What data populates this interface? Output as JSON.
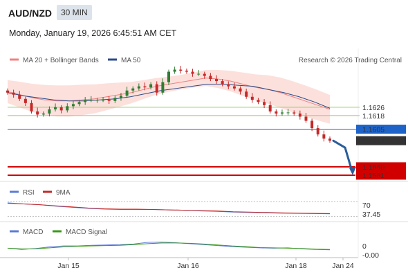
{
  "header": {
    "symbol": "AUD/NZD",
    "timeframe": "30 MIN",
    "datetime": "Monday, January 19, 2026 6:45:51 AM CET"
  },
  "copyright": "Research © 2026 Trading Central",
  "colors": {
    "ma20": "#f08080",
    "ma50": "#2a4a8a",
    "bollinger_fill": "#fbd5d0",
    "candle_up": "#2e7d32",
    "candle_down": "#c62828",
    "support_line": "#d00000",
    "resistance_line": "#9ccc65",
    "pivot_line": "#1e63c8",
    "arrow": "#2a5d9a",
    "rsi": "#5b7bd5",
    "rsi_ma": "#c62828",
    "macd": "#5b7bd5",
    "macd_signal": "#3a9a1a"
  },
  "chart_data": [
    {
      "type": "candlestick",
      "title": "AUD/NZD",
      "legend": [
        "MA 20 + Bollinger Bands",
        "MA 50"
      ],
      "legend_placement": "top-left",
      "x_tick_labels": [
        "Jan 15",
        "Jan 16",
        "Jan 18",
        "Jan 24"
      ],
      "ylim": [
        1.1555,
        1.1665
      ],
      "levels": [
        {
          "label": "1.1626",
          "value": 1.1626,
          "kind": "resistance"
        },
        {
          "label": "1.1618",
          "value": 1.1618,
          "kind": "resistance"
        },
        {
          "label": "1.1605",
          "value": 1.1605,
          "kind": "pivot"
        },
        {
          "label": "1.1594",
          "value": 1.1594,
          "kind": "last"
        },
        {
          "label": "1.1569",
          "value": 1.1569,
          "kind": "support"
        },
        {
          "label": "1.1561",
          "value": 1.1561,
          "kind": "support"
        }
      ],
      "close": [
        1.164,
        1.1638,
        1.1634,
        1.163,
        1.1622,
        1.1619,
        1.162,
        1.1624,
        1.1626,
        1.1623,
        1.1627,
        1.1629,
        1.1631,
        1.1633,
        1.1633,
        1.1633,
        1.1633,
        1.1632,
        1.1635,
        1.1637,
        1.1642,
        1.1644,
        1.1646,
        1.1645,
        1.1648,
        1.164,
        1.165,
        1.166,
        1.1662,
        1.1661,
        1.166,
        1.1658,
        1.1658,
        1.1656,
        1.1653,
        1.1651,
        1.1648,
        1.1646,
        1.1644,
        1.1641,
        1.1636,
        1.1633,
        1.1631,
        1.1628,
        1.1622,
        1.162,
        1.1621,
        1.1621,
        1.162,
        1.1617,
        1.1613,
        1.1606,
        1.16,
        1.1596,
        1.1594
      ],
      "ma20": [
        1.1641,
        1.1638,
        1.1635,
        1.1633,
        1.1632,
        1.1632,
        1.1633,
        1.1634,
        1.1636,
        1.1638,
        1.164,
        1.1643,
        1.1646,
        1.1648,
        1.165,
        1.1652,
        1.1654,
        1.1653,
        1.1651,
        1.1648,
        1.1645,
        1.1643,
        1.164,
        1.1636,
        1.1632,
        1.1628,
        1.1624
      ],
      "ma50": [
        1.164,
        1.1637,
        1.1635,
        1.1633,
        1.1632,
        1.1632,
        1.1633,
        1.1634,
        1.1636,
        1.1639,
        1.1642,
        1.1644,
        1.1646,
        1.1648,
        1.1648,
        1.1647,
        1.1646,
        1.1643,
        1.164,
        1.1636,
        1.1631,
        1.1625
      ]
    },
    {
      "type": "line",
      "legend": [
        "RSI",
        "9MA"
      ],
      "legend_placement": "top-left",
      "ylim": [
        20,
        80
      ],
      "levels": [
        {
          "label": "70",
          "value": 70
        },
        {
          "label": "37.45",
          "value": 37.45
        }
      ],
      "rsi": [
        67,
        64,
        62,
        58,
        55,
        52,
        50,
        49,
        49,
        49,
        48,
        47,
        45,
        44,
        42,
        41,
        40,
        39,
        38.5,
        38,
        37.45
      ],
      "rsi_ma": [
        66,
        64,
        62,
        59,
        56,
        53,
        51,
        50,
        50,
        49,
        48,
        47,
        46,
        45,
        43,
        42,
        41,
        40,
        39,
        38.5,
        38
      ]
    },
    {
      "type": "line",
      "legend": [
        "MACD",
        "MACD Signal"
      ],
      "legend_placement": "top-left",
      "ylim": [
        -0.003,
        0.003
      ],
      "levels": [
        {
          "label": "0",
          "value": 0
        },
        {
          "label": "-0.00",
          "value": -0.0
        }
      ],
      "macd": [
        -0.0003,
        -0.0007,
        -0.0004,
        0.0001,
        0.0004,
        0.0004,
        0.0006,
        0.0007,
        0.0008,
        0.001,
        0.0015,
        0.0016,
        0.0014,
        0.0011,
        0.0008,
        0.0005,
        0.0002,
        0.0,
        -0.0002,
        -0.0003,
        -0.0002,
        -0.0005,
        -0.0007,
        -0.0008
      ],
      "macd_signal": [
        -0.0003,
        -0.0005,
        -0.0005,
        -0.0002,
        0.0001,
        0.0003,
        0.0004,
        0.0005,
        0.0006,
        0.0008,
        0.0011,
        0.0013,
        0.0013,
        0.0012,
        0.001,
        0.0007,
        0.0004,
        0.0002,
        -0.0001,
        -0.0002,
        -0.0003,
        -0.0004,
        -0.0006,
        -0.0007
      ]
    }
  ]
}
